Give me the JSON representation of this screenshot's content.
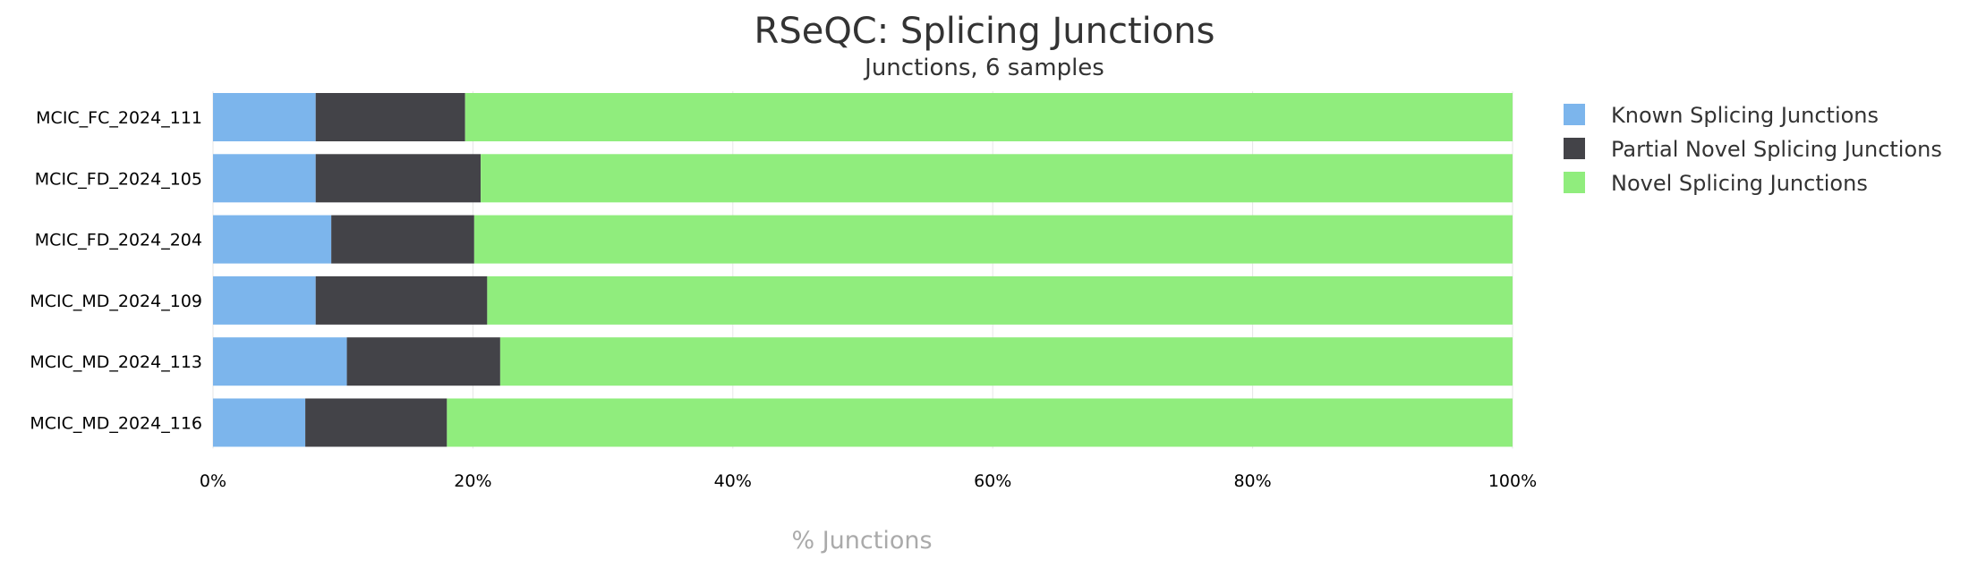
{
  "chart_data": {
    "type": "bar",
    "orientation": "horizontal",
    "stacked": true,
    "percent": true,
    "title": "RSeQC: Splicing Junctions",
    "subtitle": "Junctions, 6 samples",
    "xlabel": "% Junctions",
    "ylabel": "",
    "xlim": [
      0,
      100
    ],
    "xticks": [
      "0%",
      "20%",
      "40%",
      "60%",
      "80%",
      "100%"
    ],
    "xtick_values": [
      0,
      20,
      40,
      60,
      80,
      100
    ],
    "grid": true,
    "legend_position": "right",
    "categories": [
      "MCIC_FC_2024_111",
      "MCIC_FD_2024_105",
      "MCIC_FD_2024_204",
      "MCIC_MD_2024_109",
      "MCIC_MD_2024_113",
      "MCIC_MD_2024_116"
    ],
    "series": [
      {
        "name": "Known Splicing Junctions",
        "color": "#7cb5ec",
        "values": [
          7.9,
          7.9,
          9.1,
          7.9,
          10.3,
          7.1
        ]
      },
      {
        "name": "Partial Novel Splicing Junctions",
        "color": "#434348",
        "values": [
          11.5,
          12.7,
          11.0,
          13.2,
          11.8,
          10.9
        ]
      },
      {
        "name": "Novel Splicing Junctions",
        "color": "#90ed7d",
        "values": [
          80.6,
          79.4,
          79.9,
          78.9,
          77.9,
          82.0
        ]
      }
    ]
  }
}
